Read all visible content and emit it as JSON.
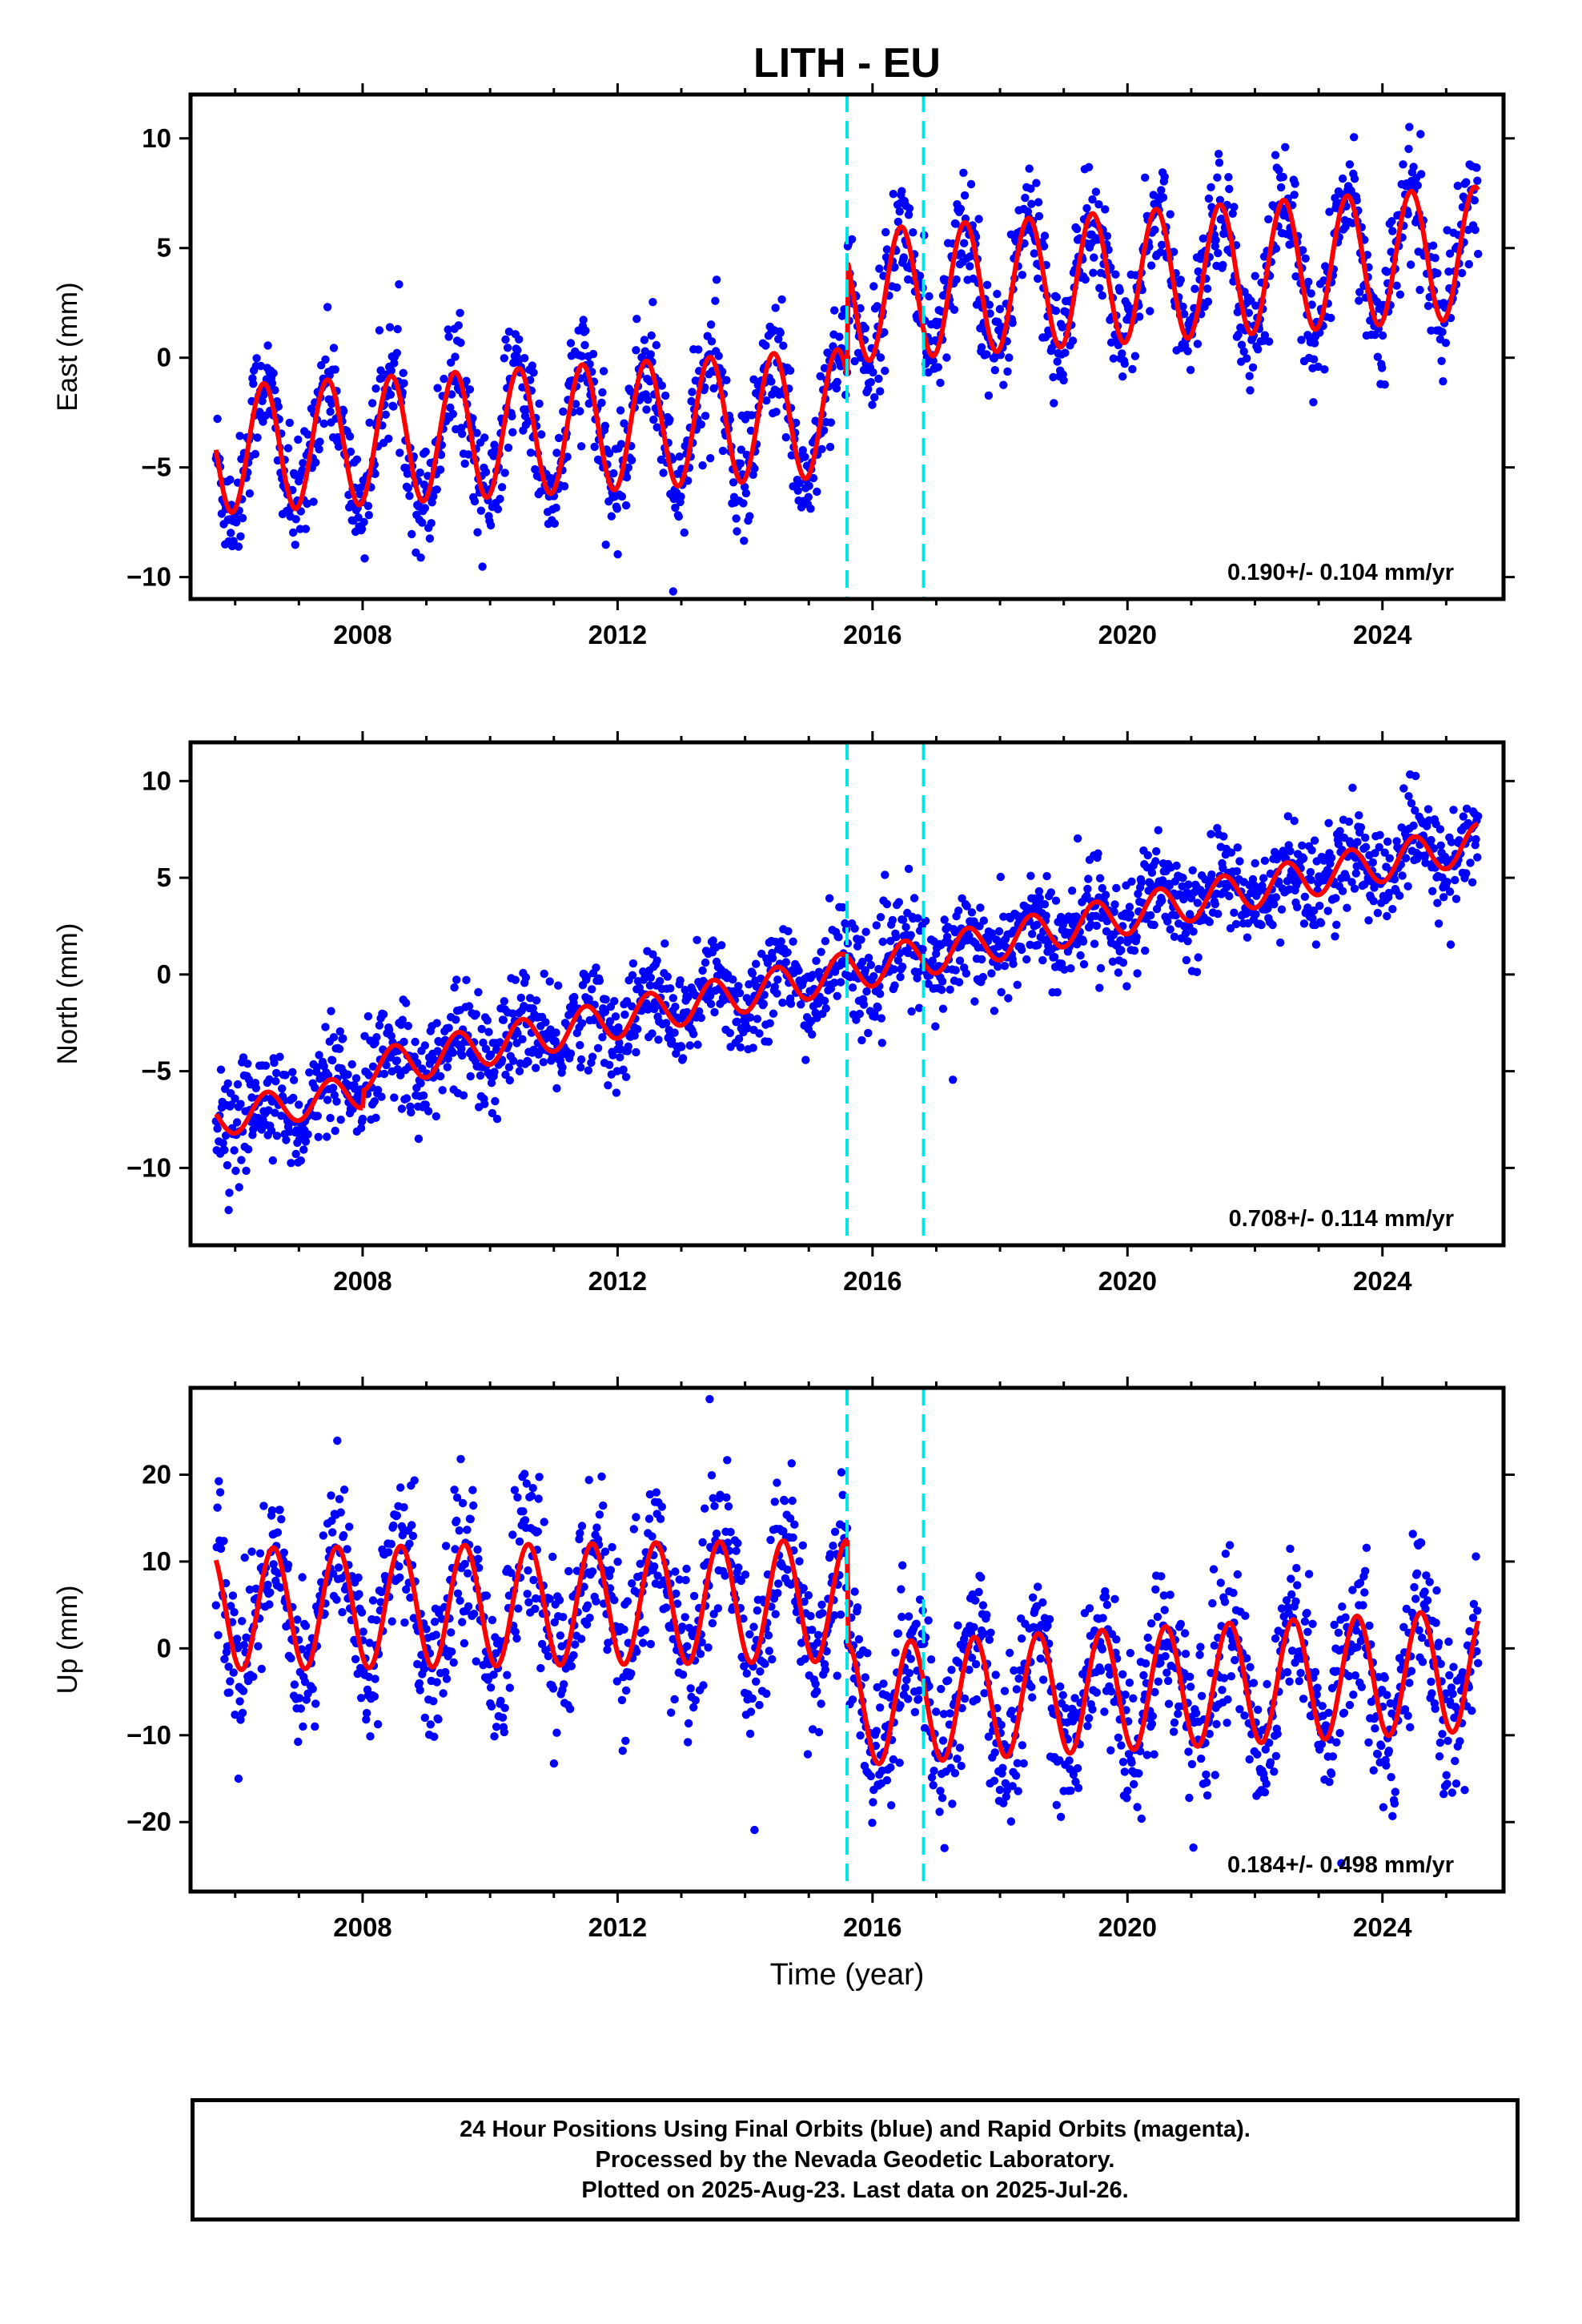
{
  "chart_data": {
    "title": "LITH - EU",
    "type": "scatter",
    "xlabel": "Time (year)",
    "xlim": [
      2005.3,
      2025.9
    ],
    "x_ticks": [
      2008,
      2012,
      2016,
      2020,
      2024
    ],
    "x_tick_labels": [
      "2008",
      "2012",
      "2016",
      "2020",
      "2024"
    ],
    "vertical_markers": [
      2015.6,
      2016.8
    ],
    "series_colors": {
      "points": "#0000ff",
      "model": "#ff0000",
      "markers": "#00e5e5"
    },
    "panels": [
      {
        "id": "east",
        "ylabel": "East (mm)",
        "ylim": [
          -11,
          12
        ],
        "yticks": [
          -10,
          -5,
          0,
          5,
          10
        ],
        "ytick_labels": [
          "−10",
          "−5",
          "0",
          "5",
          "10"
        ],
        "rate_text": "0.190+/- 0.104 mm/yr",
        "model": {
          "segments": [
            {
              "x0": 2005.7,
              "x1": 2015.6,
              "base_start": -4.2,
              "base_end": -2.5,
              "amplitude": 2.9,
              "phase_year": 2006.45
            },
            {
              "x0": 2015.6,
              "x1": 2025.5,
              "base_start": 2.8,
              "base_end": 4.8,
              "amplitude": 3.0,
              "phase_year": 2016.45
            }
          ]
        },
        "point_spread": 1.3
      },
      {
        "id": "north",
        "ylabel": "North (mm)",
        "ylim": [
          -14,
          12
        ],
        "yticks": [
          -10,
          -5,
          0,
          5,
          10
        ],
        "ytick_labels": [
          "−10",
          "−5",
          "0",
          "5",
          "10"
        ],
        "rate_text": "0.708+/- 0.114 mm/yr",
        "model": {
          "segments": [
            {
              "x0": 2005.7,
              "x1": 2008.0,
              "base_start": -7.5,
              "base_end": -6.0,
              "amplitude": 0.9,
              "phase_year": 2006.5
            },
            {
              "x0": 2008.0,
              "x1": 2025.5,
              "base_start": -5.0,
              "base_end": 6.8,
              "amplitude": 1.0,
              "phase_year": 2008.5
            }
          ]
        },
        "point_spread": 1.3
      },
      {
        "id": "up",
        "ylabel": "Up (mm)",
        "ylim": [
          -28,
          30
        ],
        "yticks": [
          -20,
          -10,
          0,
          10,
          20
        ],
        "ytick_labels": [
          "−20",
          "−10",
          "0",
          "10",
          "20"
        ],
        "rate_text": "0.184+/- 0.498 mm/yr",
        "model": {
          "segments": [
            {
              "x0": 2005.7,
              "x1": 2015.6,
              "base_start": 4.5,
              "base_end": 5.5,
              "amplitude": 7.0,
              "phase_year": 2006.6
            },
            {
              "x0": 2015.6,
              "x1": 2025.5,
              "base_start": -6.5,
              "base_end": -2.5,
              "amplitude": 7.0,
              "phase_year": 2016.6
            }
          ]
        },
        "point_spread": 4.5
      }
    ]
  },
  "footer": {
    "line1": "24 Hour Positions Using Final Orbits (blue) and Rapid Orbits (magenta).",
    "line2": "Processed by the Nevada Geodetic Laboratory.",
    "line3": "Plotted on 2025-Aug-23. Last data on 2025-Jul-26."
  }
}
